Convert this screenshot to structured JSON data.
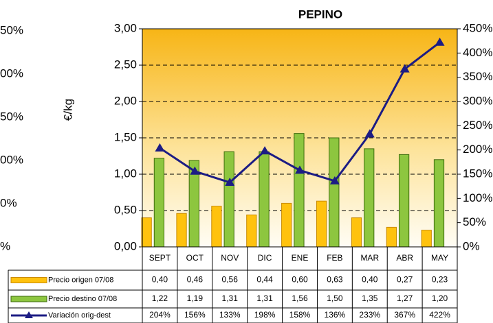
{
  "clipped_axis_labels": [
    "50%",
    "00%",
    "50%",
    "00%",
    "0%",
    "%"
  ],
  "chart_data": {
    "type": "bar",
    "title": "PEPINO",
    "y_label": "€/kg",
    "categories": [
      "SEPT",
      "OCT",
      "NOV",
      "DIC",
      "ENE",
      "FEB",
      "MAR",
      "ABR",
      "MAY"
    ],
    "series": [
      {
        "name": "Precio origen 07/08",
        "color": "#ffc20e",
        "values": [
          0.4,
          0.46,
          0.56,
          0.44,
          0.6,
          0.63,
          0.4,
          0.27,
          0.23
        ],
        "value_labels": [
          "0,40",
          "0,46",
          "0,56",
          "0,44",
          "0,60",
          "0,63",
          "0,40",
          "0,27",
          "0,23"
        ]
      },
      {
        "name": "Precio destino 07/08",
        "color": "#8dc63f",
        "values": [
          1.22,
          1.19,
          1.31,
          1.31,
          1.56,
          1.5,
          1.35,
          1.27,
          1.2
        ],
        "value_labels": [
          "1,22",
          "1,19",
          "1,31",
          "1,31",
          "1,56",
          "1,50",
          "1,35",
          "1,27",
          "1,20"
        ]
      },
      {
        "name": "Variación orig-dest",
        "type": "line",
        "axis": "y2",
        "color": "#1c1c84",
        "values": [
          204,
          156,
          133,
          198,
          158,
          136,
          233,
          367,
          422
        ],
        "value_labels": [
          "204%",
          "156%",
          "133%",
          "198%",
          "158%",
          "136%",
          "233%",
          "367%",
          "422%"
        ]
      }
    ],
    "ylim": [
      0,
      3
    ],
    "yticks": [
      {
        "value": 0,
        "label": "0,00"
      },
      {
        "value": 0.5,
        "label": "0,50"
      },
      {
        "value": 1,
        "label": "1,00"
      },
      {
        "value": 1.5,
        "label": "1,50"
      },
      {
        "value": 2,
        "label": "2,00"
      },
      {
        "value": 2.5,
        "label": "2,50"
      },
      {
        "value": 3,
        "label": "3,00"
      }
    ],
    "y2lim": [
      0,
      450
    ],
    "y2ticks": [
      {
        "value": 0,
        "label": "0%"
      },
      {
        "value": 50,
        "label": "50%"
      },
      {
        "value": 100,
        "label": "100%"
      },
      {
        "value": 150,
        "label": "150%"
      },
      {
        "value": 200,
        "label": "200%"
      },
      {
        "value": 250,
        "label": "250%"
      },
      {
        "value": 300,
        "label": "300%"
      },
      {
        "value": 350,
        "label": "350%"
      },
      {
        "value": 400,
        "label": "400%"
      },
      {
        "value": 450,
        "label": "450%"
      }
    ],
    "grid": true,
    "data_table": true
  }
}
